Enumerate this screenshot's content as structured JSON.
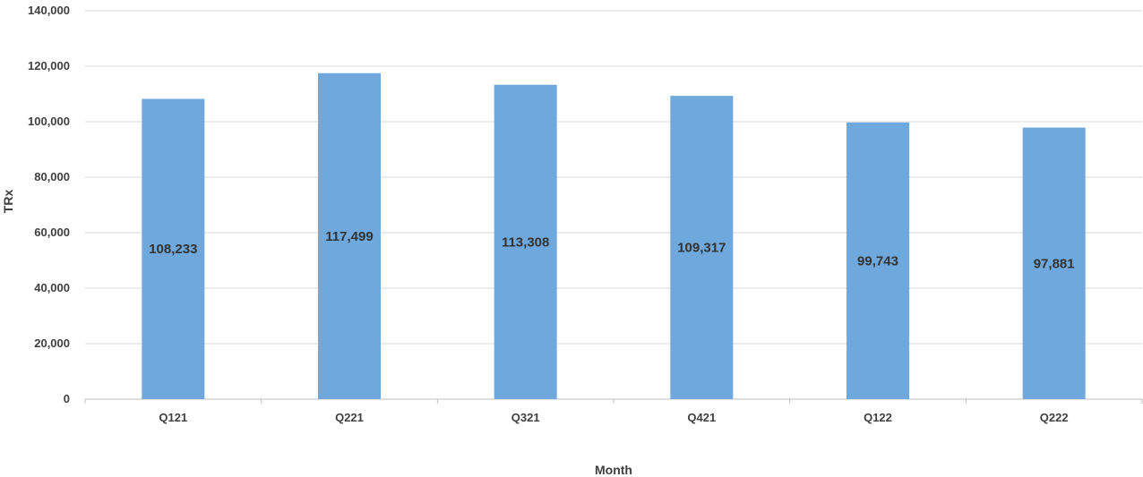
{
  "chart_data": {
    "type": "bar",
    "title": "",
    "xlabel": "Month",
    "ylabel": "TRx",
    "categories": [
      "Q121",
      "Q221",
      "Q321",
      "Q421",
      "Q122",
      "Q222"
    ],
    "values": [
      108233,
      117499,
      113308,
      109317,
      99743,
      97881
    ],
    "data_labels": [
      "108,233",
      "117,499",
      "113,308",
      "109,317",
      "99,743",
      "97,881"
    ],
    "ylim": [
      0,
      140000
    ],
    "yticks": [
      0,
      20000,
      40000,
      60000,
      80000,
      100000,
      120000,
      140000
    ],
    "ytick_labels": [
      "0",
      "20,000",
      "40,000",
      "60,000",
      "80,000",
      "100,000",
      "120,000",
      "140,000"
    ],
    "grid": true,
    "legend": "none",
    "bar_color": "#6FA8DC",
    "grid_color": "#D9D9D9"
  }
}
